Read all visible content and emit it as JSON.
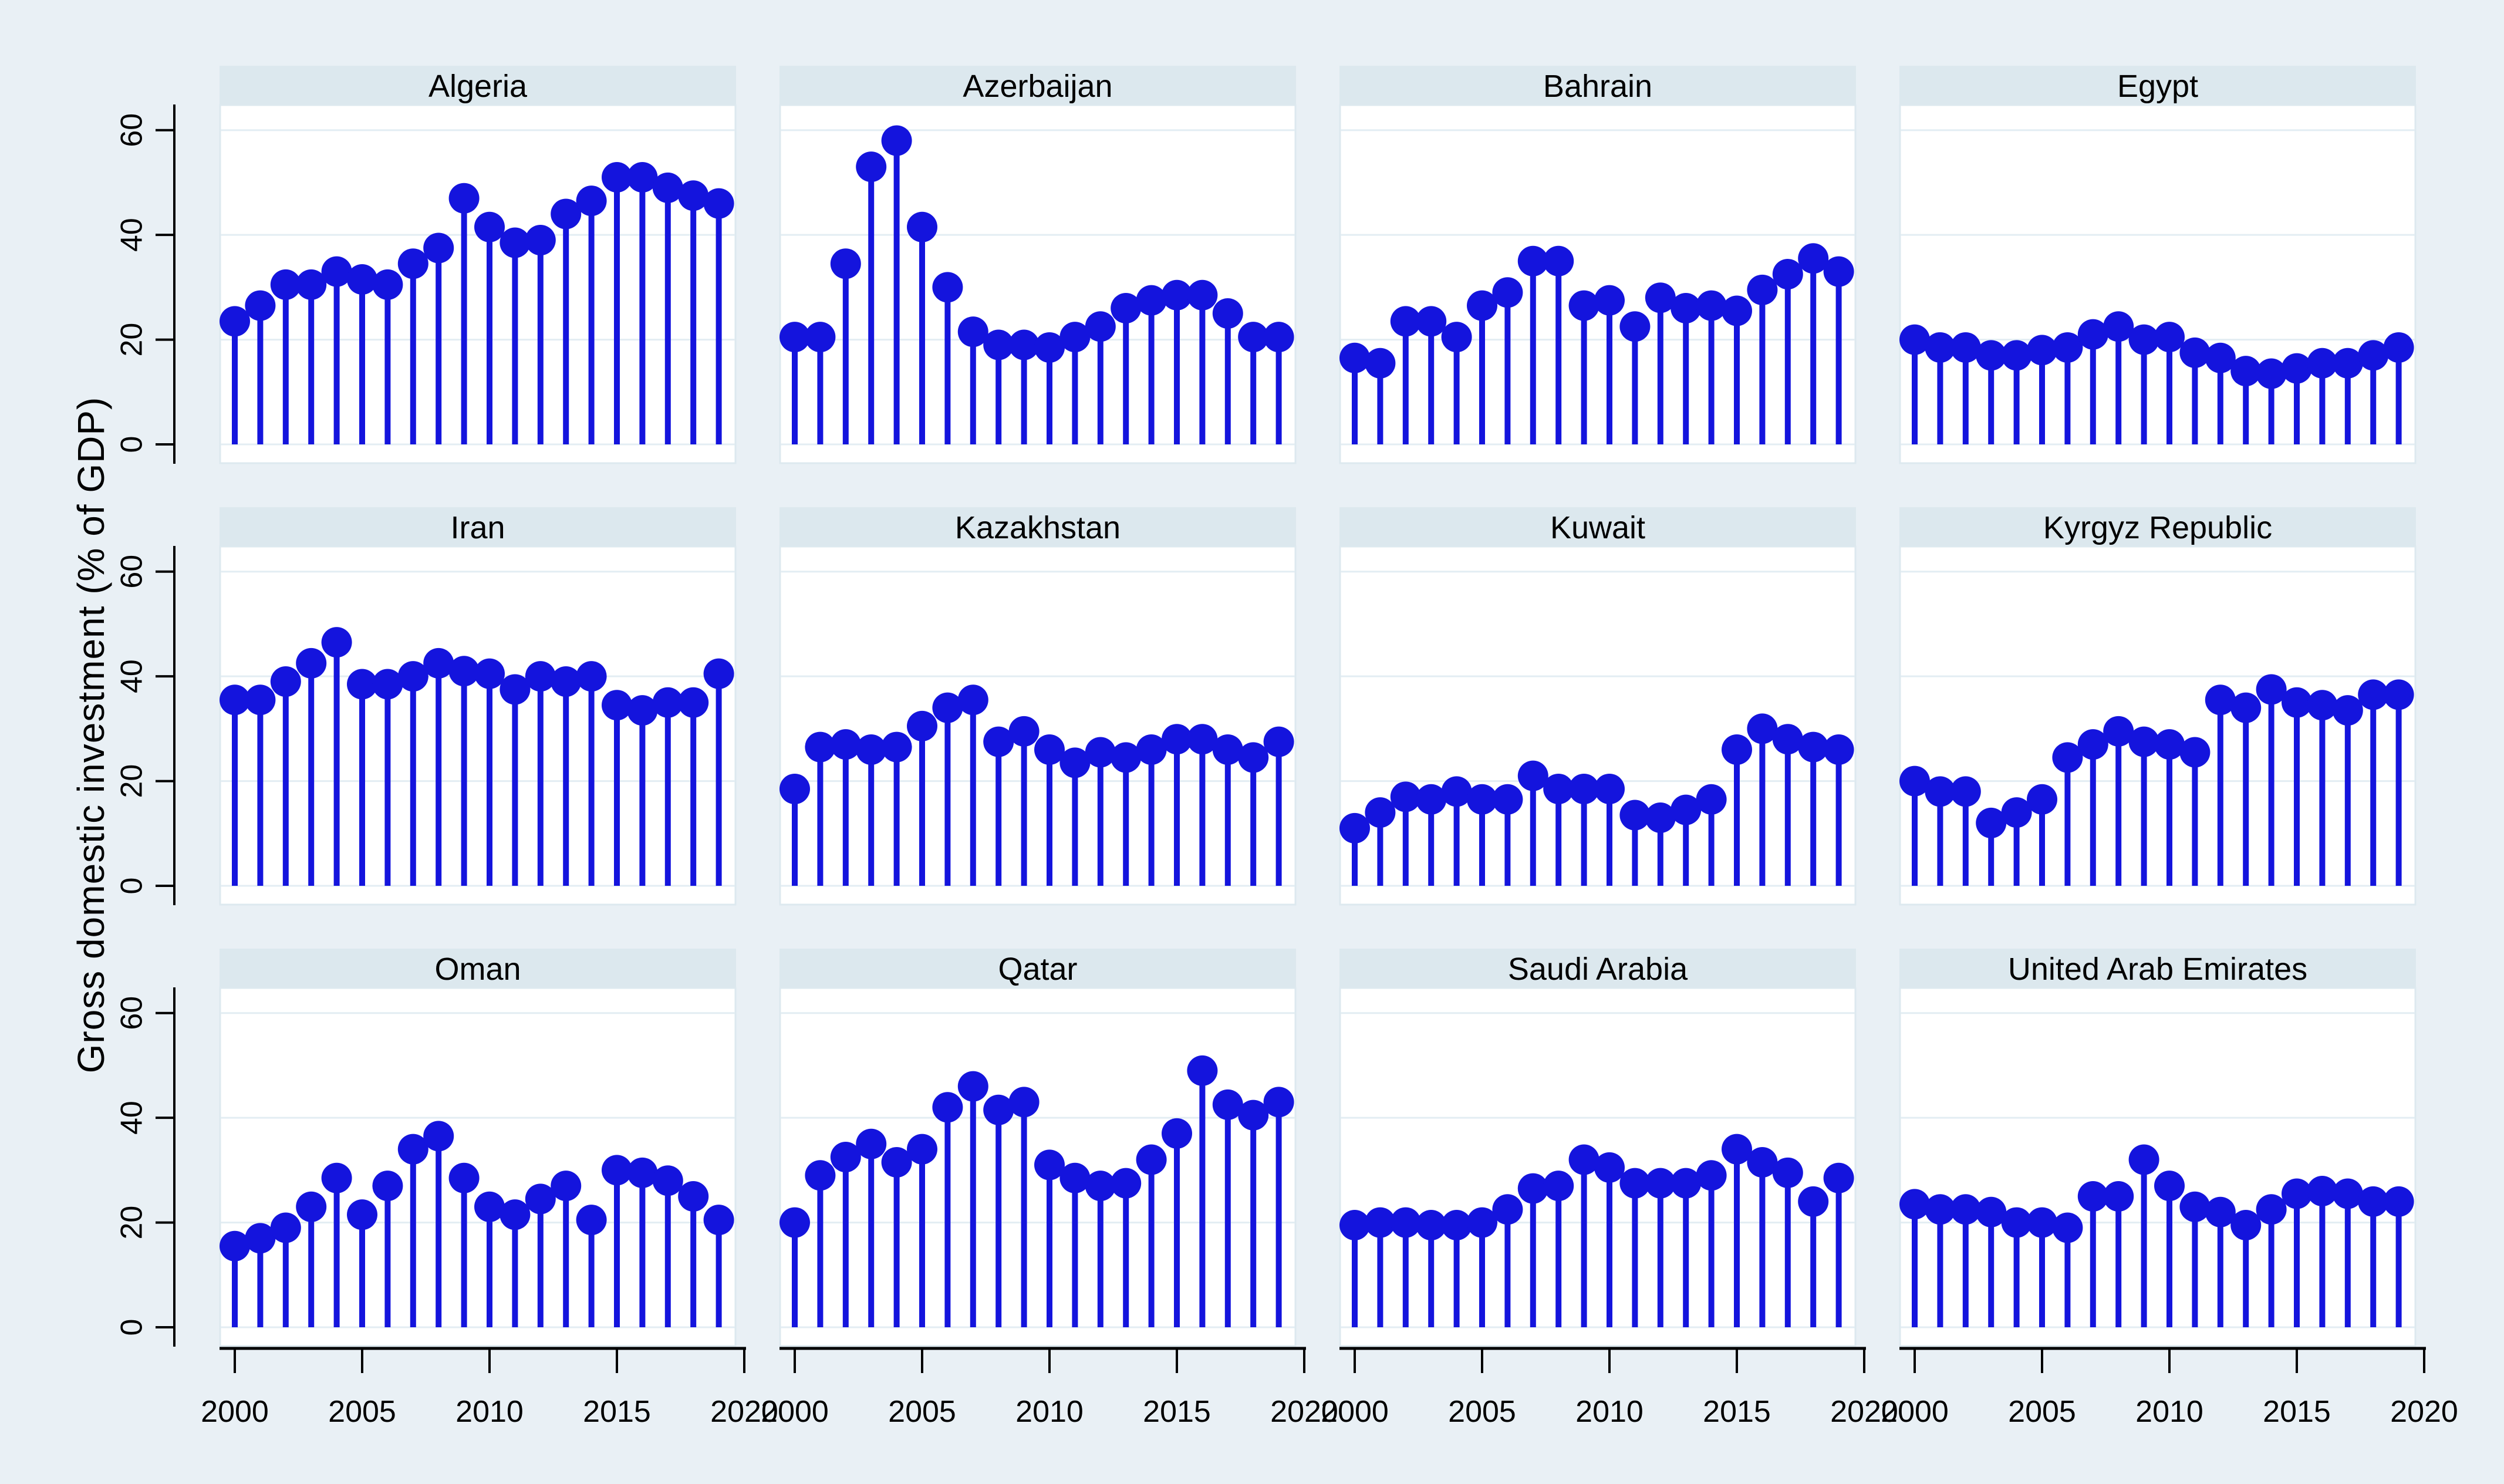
{
  "figure": {
    "ylabel": "Gross domestic investment (% of GDP)",
    "background": "#e9f0f5",
    "panel_title_bg": "#dce8ee",
    "plot_bg": "#ffffff",
    "grid_color": "#e3edf3",
    "plot_border_color": "#dde9ef",
    "axis_color": "#000000",
    "stem_color": "#1414dd",
    "ytick_labels": [
      "0",
      "20",
      "40",
      "60"
    ],
    "xtick_labels": [
      "2000",
      "2005",
      "2010",
      "2015",
      "2020"
    ]
  },
  "chart_data": {
    "type": "stem",
    "title": "",
    "xlabel": "",
    "ylabel": "Gross domestic investment (% of GDP)",
    "ylim": [
      0,
      60
    ],
    "yticks": [
      0,
      20,
      40,
      60
    ],
    "xticks": [
      2000,
      2005,
      2010,
      2015,
      2020
    ],
    "grid": true,
    "legend": "none",
    "x": [
      2000,
      2001,
      2002,
      2003,
      2004,
      2005,
      2006,
      2007,
      2008,
      2009,
      2010,
      2011,
      2012,
      2013,
      2014,
      2015,
      2016,
      2017,
      2018,
      2019
    ],
    "series": [
      {
        "name": "Algeria",
        "values": [
          23.5,
          26.5,
          30.5,
          30.5,
          33,
          31.5,
          30.5,
          34.5,
          37.5,
          47,
          41.5,
          38.5,
          39,
          44,
          46.5,
          51,
          51,
          49,
          47.5,
          46
        ]
      },
      {
        "name": "Azerbaijan",
        "values": [
          20.5,
          20.5,
          34.5,
          53,
          58,
          41.5,
          30,
          21.5,
          19,
          19,
          18.5,
          20.5,
          22.5,
          26,
          27.5,
          28.5,
          28.5,
          25,
          20.5,
          20.5
        ]
      },
      {
        "name": "Bahrain",
        "values": [
          16.5,
          15.5,
          23.5,
          23.5,
          20.5,
          26.5,
          29,
          35,
          35,
          26.5,
          27.5,
          22.5,
          28,
          26,
          26.5,
          25.5,
          29.5,
          32.5,
          35.5,
          33
        ]
      },
      {
        "name": "Egypt",
        "values": [
          20,
          18.5,
          18.5,
          17,
          17,
          18,
          18.5,
          21,
          22.5,
          20,
          20.5,
          17.5,
          16.5,
          14,
          13.5,
          14.5,
          15.5,
          15.5,
          17,
          18.5
        ]
      },
      {
        "name": "Iran",
        "values": [
          35.5,
          35.5,
          39,
          42.5,
          46.5,
          38.5,
          38.5,
          40,
          42.5,
          41,
          40.5,
          37.5,
          40,
          39,
          40,
          34.5,
          33.5,
          35,
          35,
          40.5
        ]
      },
      {
        "name": "Kazakhstan",
        "values": [
          18.5,
          26.5,
          27,
          26,
          26.5,
          30.5,
          34,
          35.5,
          27.5,
          29.5,
          26,
          23.5,
          25.5,
          24.5,
          26,
          28,
          28,
          26,
          24.5,
          27.5
        ]
      },
      {
        "name": "Kuwait",
        "values": [
          11,
          14,
          17,
          16.5,
          18,
          16.5,
          16.5,
          21,
          18.5,
          18.5,
          18.5,
          13.5,
          13,
          14.5,
          16.5,
          26,
          30,
          28,
          26.5,
          26
        ]
      },
      {
        "name": "Kyrgyz Republic",
        "values": [
          20,
          18,
          18,
          12,
          14,
          16.5,
          24.5,
          27,
          29.5,
          27.5,
          27,
          25.5,
          35.5,
          34,
          37.5,
          35,
          34.5,
          33.5,
          36.5,
          36.5
        ]
      },
      {
        "name": "Oman",
        "values": [
          15.5,
          17,
          19,
          23,
          28.5,
          21.5,
          27,
          34,
          36.5,
          28.5,
          23,
          21.5,
          24.5,
          27,
          20.5,
          30,
          29.5,
          28,
          25,
          20.5
        ]
      },
      {
        "name": "Qatar",
        "values": [
          20,
          29,
          32.5,
          35,
          31.5,
          34,
          42,
          46,
          41.5,
          43,
          31,
          28.5,
          27,
          27.5,
          32,
          37,
          49,
          42.5,
          40.5,
          43
        ]
      },
      {
        "name": "Saudi Arabia",
        "values": [
          19.5,
          20,
          20,
          19.5,
          19.5,
          20,
          22.5,
          26.5,
          27,
          32,
          30.5,
          27.5,
          27.5,
          27.5,
          29,
          34,
          31.5,
          29.5,
          24,
          28.5
        ]
      },
      {
        "name": "United Arab Emirates",
        "values": [
          23.5,
          22.5,
          22.5,
          22,
          20,
          20,
          19,
          25,
          25,
          32,
          27,
          23,
          22,
          19.5,
          22.5,
          25.5,
          26,
          25.5,
          24,
          24
        ]
      }
    ]
  }
}
